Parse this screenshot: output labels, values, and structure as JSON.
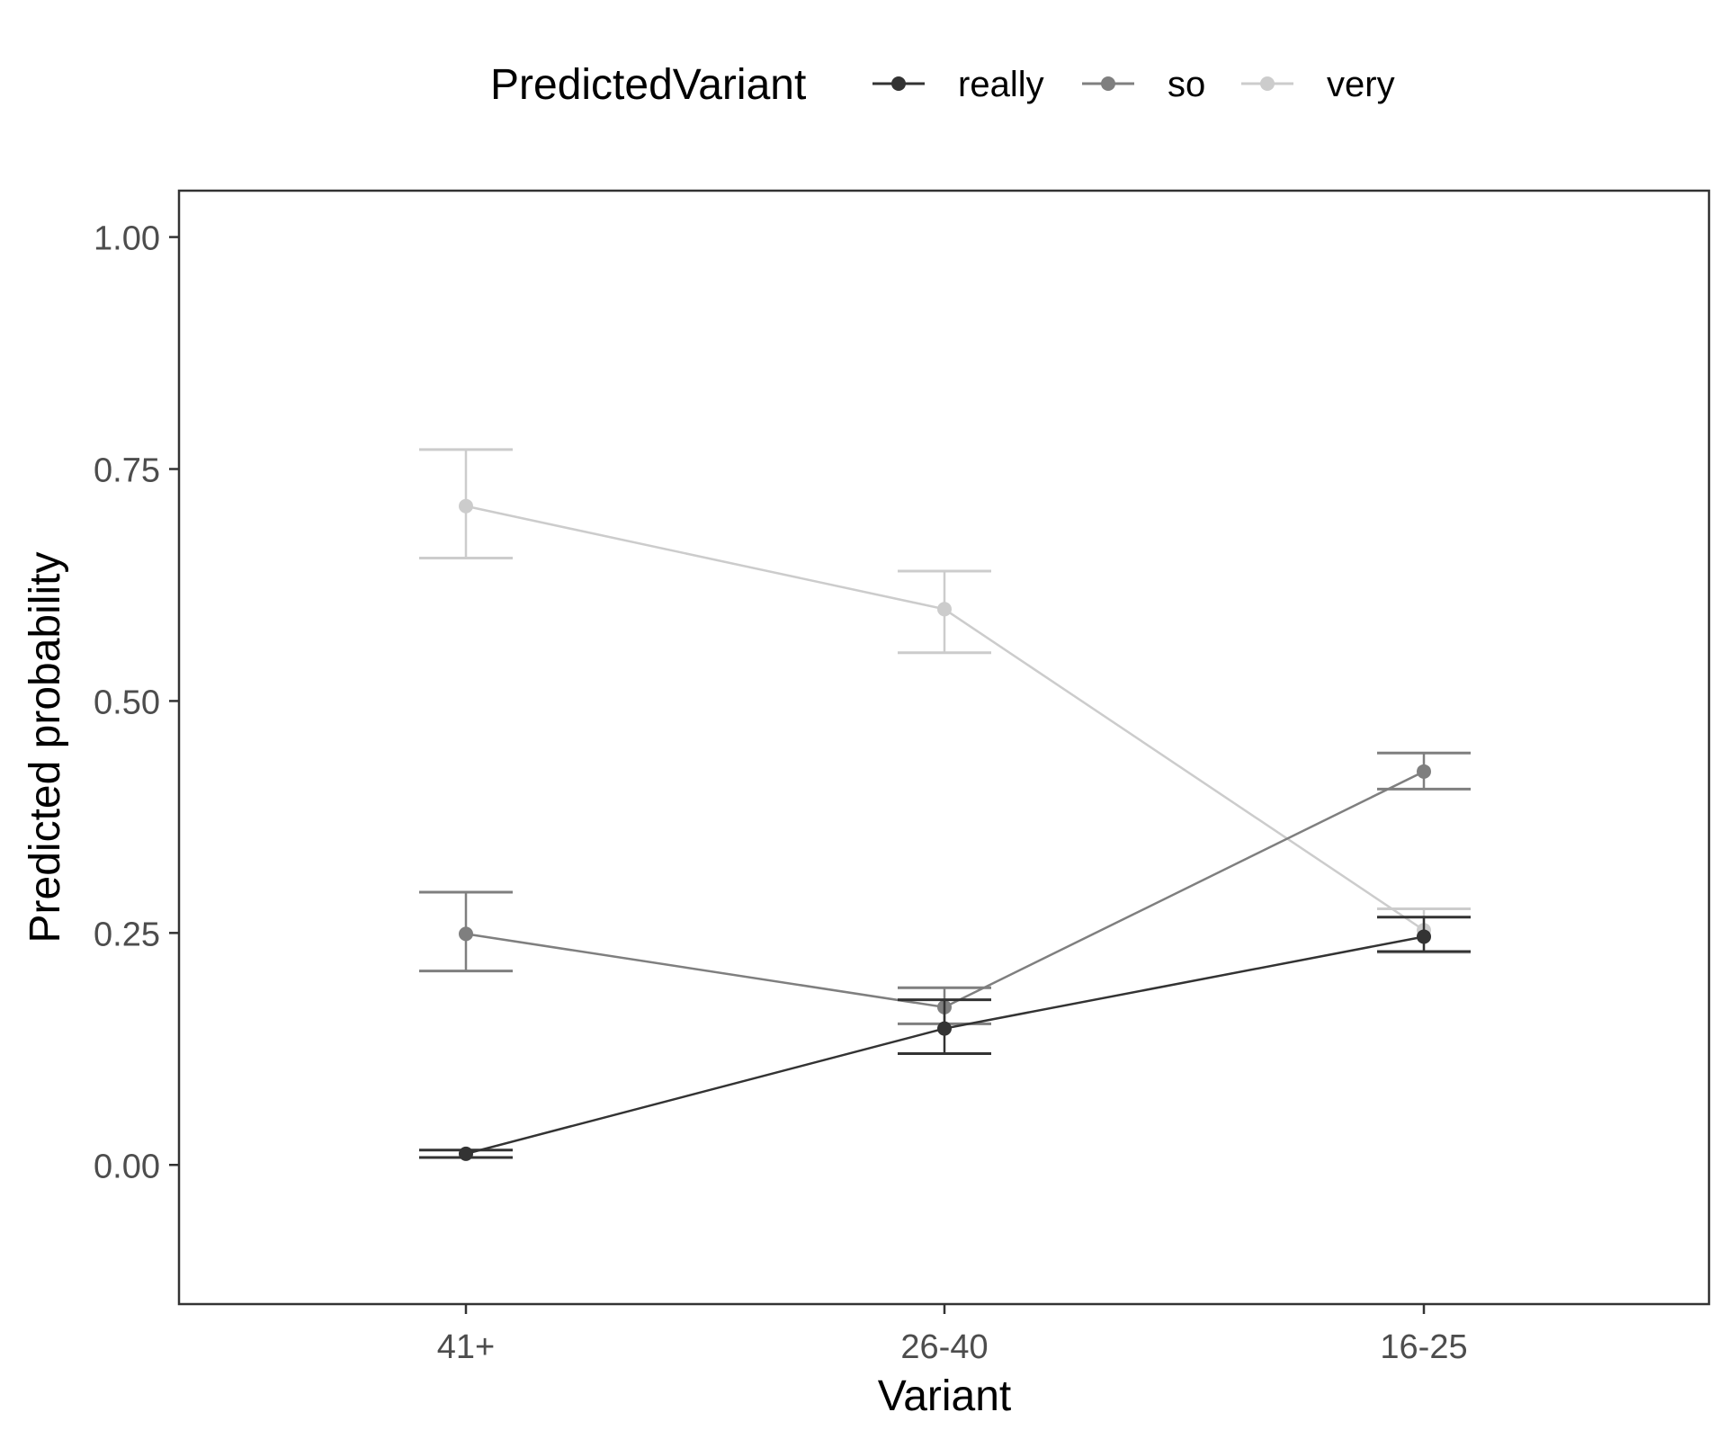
{
  "chart_data": {
    "type": "line",
    "title": "",
    "xlabel": "Variant",
    "ylabel": "Predicted probability",
    "categories": [
      "41+",
      "26-40",
      "16-25"
    ],
    "ylim": [
      -0.15,
      1.05
    ],
    "yticks": [
      0.0,
      0.25,
      0.5,
      0.75,
      1.0
    ],
    "ytick_labels": [
      "0.00",
      "0.25",
      "0.50",
      "0.75",
      "1.00"
    ],
    "grid": false,
    "legend": {
      "title": "PredictedVariant",
      "position": "top"
    },
    "error_bars": true,
    "series": [
      {
        "name": "really",
        "color": "#333333",
        "values": [
          0.012,
          0.147,
          0.246
        ],
        "lower": [
          0.008,
          0.12,
          0.23
        ],
        "upper": [
          0.016,
          0.178,
          0.267
        ]
      },
      {
        "name": "so",
        "color": "#7f7f7f",
        "values": [
          0.249,
          0.17,
          0.424
        ],
        "lower": [
          0.209,
          0.152,
          0.405
        ],
        "upper": [
          0.294,
          0.191,
          0.444
        ]
      },
      {
        "name": "very",
        "color": "#cccccc",
        "values": [
          0.71,
          0.599,
          0.253
        ],
        "lower": [
          0.654,
          0.552,
          0.229
        ],
        "upper": [
          0.771,
          0.64,
          0.276
        ]
      }
    ]
  }
}
